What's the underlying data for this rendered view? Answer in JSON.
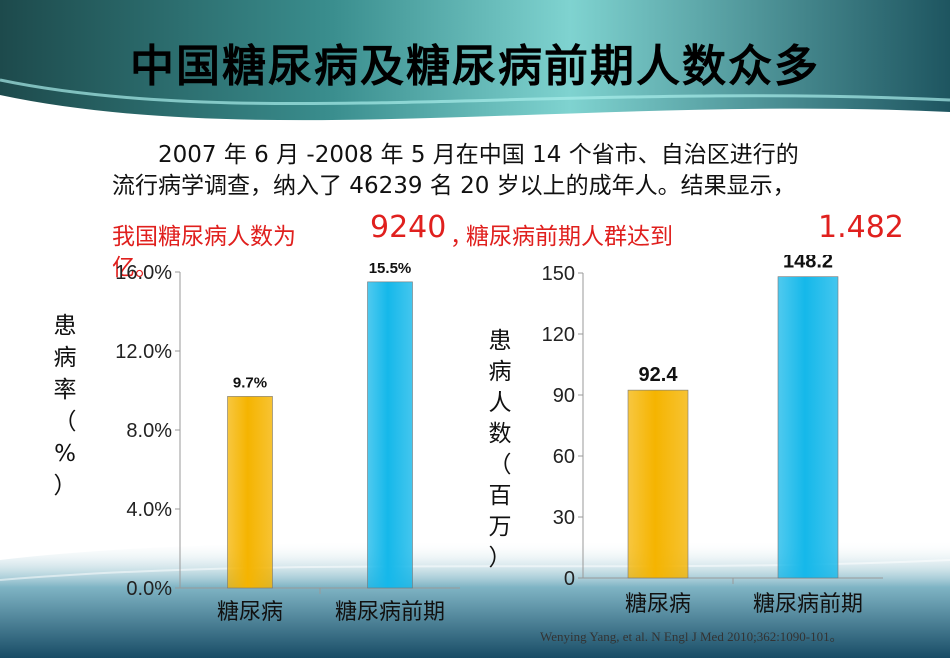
{
  "title": "中国糖尿病及糖尿病前期人数众多",
  "intro": {
    "line1": "2007 年 6 月 -2008 年 5 月在中国 14 个省市、自治区进行的",
    "line2": "流行病学调查，纳入了 46239 名 20 岁以上的成年人。结果显示，",
    "highlight_a": "我国糖尿病人数为",
    "highlight_num1": "9240",
    "highlight_comma": "，",
    "highlight_b": "糖尿病前期人群达到",
    "highlight_num2": "1.482",
    "highlight_unit": "亿。"
  },
  "colors": {
    "diabetes": "#f5b400",
    "prediabetes": "#15b8ea",
    "highlight": "#e0201e"
  },
  "citation": "Wenying Yang, et al. N Engl J Med 2010;362:1090-101。",
  "chart_data": [
    {
      "type": "bar",
      "categories": [
        "糖尿病",
        "糖尿病前期"
      ],
      "values": [
        9.7,
        15.5
      ],
      "value_labels": [
        "9.7%",
        "15.5%"
      ],
      "ylabel": "患病率（%）",
      "ylim": [
        0,
        16
      ],
      "yticks": [
        0,
        4,
        8,
        12,
        16
      ],
      "ytick_labels": [
        "0.0%",
        "4.0%",
        "8.0%",
        "12.0%",
        "16.0%"
      ],
      "grid": false
    },
    {
      "type": "bar",
      "categories": [
        "糖尿病",
        "糖尿病前期"
      ],
      "values": [
        92.4,
        148.2
      ],
      "value_labels": [
        "92.4",
        "148.2"
      ],
      "ylabel": "患病人数（百万）",
      "ylim": [
        0,
        150
      ],
      "yticks": [
        0,
        30,
        60,
        90,
        120,
        150
      ],
      "ytick_labels": [
        "0",
        "30",
        "60",
        "90",
        "120",
        "150"
      ],
      "grid": false
    }
  ]
}
